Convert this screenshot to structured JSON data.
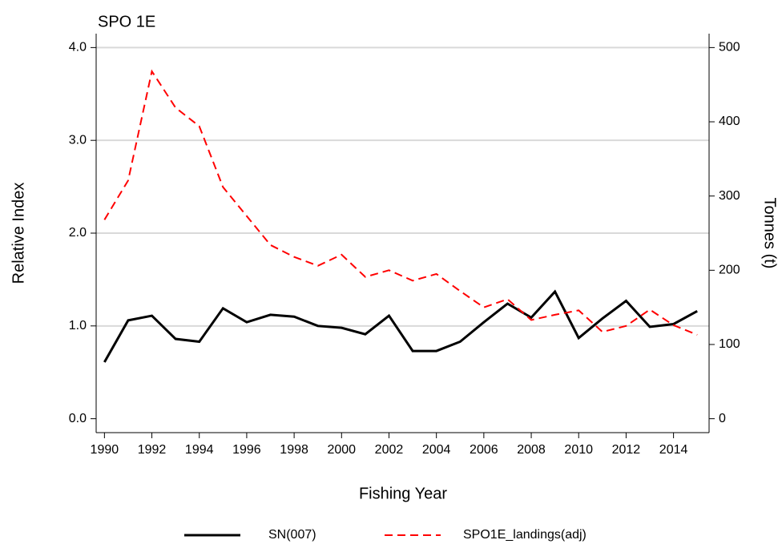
{
  "chart_data": {
    "type": "line",
    "title": "SPO 1E",
    "x_label": "Fishing Year",
    "y_label": "Relative Index",
    "y2_label": "Tonnes (t)",
    "x": [
      1990,
      1991,
      1992,
      1993,
      1994,
      1995,
      1996,
      1997,
      1998,
      1999,
      2000,
      2001,
      2002,
      2003,
      2004,
      2005,
      2006,
      2007,
      2008,
      2009,
      2010,
      2011,
      2012,
      2013,
      2014,
      2015
    ],
    "series": [
      {
        "name": "SN(007)",
        "color": "#000000",
        "dash": false,
        "values": [
          0.61,
          1.06,
          1.11,
          0.86,
          0.83,
          1.19,
          1.04,
          1.12,
          1.1,
          1.0,
          0.98,
          0.91,
          1.11,
          0.73,
          0.73,
          0.83,
          1.04,
          1.24,
          1.09,
          1.37,
          0.87,
          1.08,
          1.27,
          0.99,
          1.02,
          1.16
        ]
      },
      {
        "name": "SPO1E_landings(adj)",
        "color": "#ff0000",
        "dash": true,
        "axis": "y2",
        "values": [
          268,
          321,
          468,
          419,
          394,
          312,
          273,
          234,
          218,
          206,
          221,
          191,
          200,
          186,
          195,
          172,
          150,
          161,
          133,
          140,
          146,
          117,
          125,
          147,
          126,
          113
        ]
      }
    ],
    "xlim": [
      1989.65,
      2015.5
    ],
    "xticks": [
      1990,
      1992,
      1994,
      1996,
      1998,
      2000,
      2002,
      2004,
      2006,
      2008,
      2010,
      2012,
      2014
    ],
    "ylim": [
      -0.15,
      4.15
    ],
    "yticks": [
      {
        "value": 0,
        "label": "0.0"
      },
      {
        "value": 1,
        "label": "1.0"
      },
      {
        "value": 2,
        "label": "2.0"
      },
      {
        "value": 3,
        "label": "3.0"
      },
      {
        "value": 4,
        "label": "4.0"
      }
    ],
    "y2lim": [
      -18.75,
      518.75
    ],
    "y2ticks": [
      0,
      100,
      200,
      300,
      400,
      500
    ],
    "grid": true
  }
}
